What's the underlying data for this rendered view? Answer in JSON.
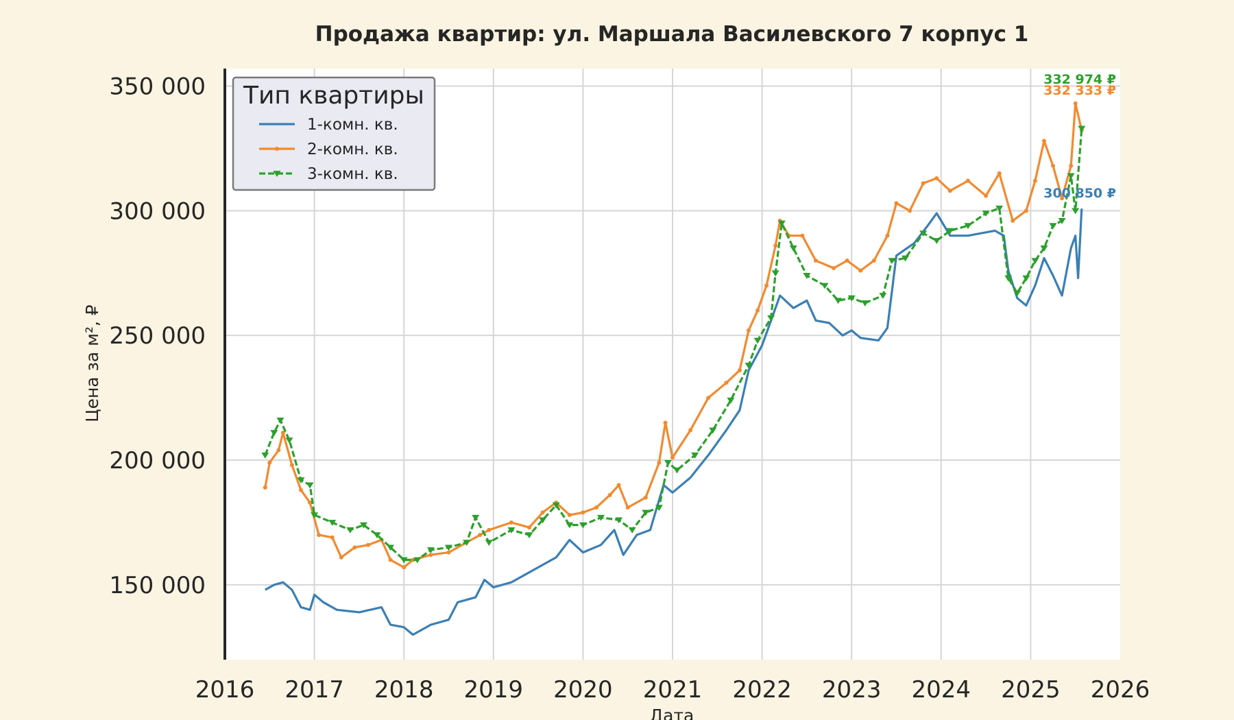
{
  "chart_data": {
    "type": "line",
    "title": "Продажа квартир: ул. Маршала Василевского 7 корпус 1",
    "xlabel": "Дата",
    "ylabel": "Цена за м², ₽",
    "xlim": [
      2016,
      2026
    ],
    "ylim": [
      120000,
      357000
    ],
    "x_ticks": [
      "2016",
      "2017",
      "2018",
      "2019",
      "2020",
      "2021",
      "2022",
      "2023",
      "2024",
      "2025",
      "2026"
    ],
    "y_ticks": [
      "150 000",
      "200 000",
      "250 000",
      "300 000",
      "350 000"
    ],
    "y_tick_values": [
      150000,
      200000,
      250000,
      300000,
      350000
    ],
    "grid": true,
    "legend": {
      "title": "Тип квартиры",
      "placement": "top-left"
    },
    "series": [
      {
        "name": "1-комн. кв.",
        "color": "#3a7fb5",
        "marker": "none",
        "end_label": "300 850 ₽",
        "points": [
          [
            2016.45,
            148000
          ],
          [
            2016.55,
            150000
          ],
          [
            2016.65,
            151000
          ],
          [
            2016.75,
            148000
          ],
          [
            2016.85,
            141000
          ],
          [
            2016.95,
            140000
          ],
          [
            2017.0,
            146000
          ],
          [
            2017.1,
            143000
          ],
          [
            2017.25,
            140000
          ],
          [
            2017.5,
            139000
          ],
          [
            2017.75,
            141000
          ],
          [
            2017.85,
            134000
          ],
          [
            2018.0,
            133000
          ],
          [
            2018.1,
            130000
          ],
          [
            2018.3,
            134000
          ],
          [
            2018.5,
            136000
          ],
          [
            2018.6,
            143000
          ],
          [
            2018.8,
            145000
          ],
          [
            2018.9,
            152000
          ],
          [
            2019.0,
            149000
          ],
          [
            2019.2,
            151000
          ],
          [
            2019.5,
            157000
          ],
          [
            2019.7,
            161000
          ],
          [
            2019.85,
            168000
          ],
          [
            2020.0,
            163000
          ],
          [
            2020.2,
            166000
          ],
          [
            2020.35,
            172000
          ],
          [
            2020.45,
            162000
          ],
          [
            2020.6,
            170000
          ],
          [
            2020.75,
            172000
          ],
          [
            2020.9,
            190000
          ],
          [
            2021.0,
            187000
          ],
          [
            2021.2,
            193000
          ],
          [
            2021.4,
            202000
          ],
          [
            2021.6,
            212000
          ],
          [
            2021.75,
            220000
          ],
          [
            2021.85,
            236000
          ],
          [
            2022.0,
            246000
          ],
          [
            2022.1,
            256000
          ],
          [
            2022.2,
            266000
          ],
          [
            2022.35,
            261000
          ],
          [
            2022.5,
            264000
          ],
          [
            2022.6,
            256000
          ],
          [
            2022.75,
            255000
          ],
          [
            2022.9,
            250000
          ],
          [
            2023.0,
            252000
          ],
          [
            2023.1,
            249000
          ],
          [
            2023.3,
            248000
          ],
          [
            2023.4,
            253000
          ],
          [
            2023.5,
            282000
          ],
          [
            2023.7,
            287000
          ],
          [
            2023.85,
            294000
          ],
          [
            2023.95,
            299000
          ],
          [
            2024.1,
            290000
          ],
          [
            2024.3,
            290000
          ],
          [
            2024.45,
            291000
          ],
          [
            2024.6,
            292000
          ],
          [
            2024.7,
            290000
          ],
          [
            2024.75,
            276000
          ],
          [
            2024.85,
            265000
          ],
          [
            2024.95,
            262000
          ],
          [
            2025.05,
            270000
          ],
          [
            2025.15,
            281000
          ],
          [
            2025.25,
            274000
          ],
          [
            2025.35,
            266000
          ],
          [
            2025.45,
            285000
          ],
          [
            2025.5,
            290000
          ],
          [
            2025.53,
            273000
          ],
          [
            2025.57,
            300850
          ]
        ]
      },
      {
        "name": "2-комн. кв.",
        "color": "#f28a2e",
        "marker": "circle",
        "end_label": "332 333 ₽",
        "points": [
          [
            2016.45,
            189000
          ],
          [
            2016.5,
            199000
          ],
          [
            2016.6,
            204000
          ],
          [
            2016.65,
            211000
          ],
          [
            2016.75,
            198000
          ],
          [
            2016.85,
            188000
          ],
          [
            2016.95,
            183000
          ],
          [
            2017.05,
            170000
          ],
          [
            2017.2,
            169000
          ],
          [
            2017.3,
            161000
          ],
          [
            2017.45,
            165000
          ],
          [
            2017.6,
            166000
          ],
          [
            2017.75,
            168000
          ],
          [
            2017.85,
            160000
          ],
          [
            2018.0,
            157000
          ],
          [
            2018.1,
            160000
          ],
          [
            2018.3,
            162000
          ],
          [
            2018.5,
            163000
          ],
          [
            2018.7,
            167000
          ],
          [
            2018.85,
            170000
          ],
          [
            2018.95,
            172000
          ],
          [
            2019.2,
            175000
          ],
          [
            2019.4,
            173000
          ],
          [
            2019.55,
            179000
          ],
          [
            2019.7,
            183000
          ],
          [
            2019.85,
            178000
          ],
          [
            2020.0,
            179000
          ],
          [
            2020.15,
            181000
          ],
          [
            2020.3,
            186000
          ],
          [
            2020.4,
            190000
          ],
          [
            2020.5,
            181000
          ],
          [
            2020.7,
            185000
          ],
          [
            2020.85,
            199000
          ],
          [
            2020.92,
            215000
          ],
          [
            2021.0,
            201000
          ],
          [
            2021.2,
            212000
          ],
          [
            2021.4,
            225000
          ],
          [
            2021.6,
            231000
          ],
          [
            2021.75,
            236000
          ],
          [
            2021.85,
            252000
          ],
          [
            2021.95,
            260000
          ],
          [
            2022.05,
            270000
          ],
          [
            2022.15,
            286000
          ],
          [
            2022.2,
            296000
          ],
          [
            2022.3,
            290000
          ],
          [
            2022.45,
            290000
          ],
          [
            2022.6,
            280000
          ],
          [
            2022.8,
            277000
          ],
          [
            2022.95,
            280000
          ],
          [
            2023.1,
            276000
          ],
          [
            2023.25,
            280000
          ],
          [
            2023.4,
            290000
          ],
          [
            2023.5,
            303000
          ],
          [
            2023.65,
            300000
          ],
          [
            2023.8,
            311000
          ],
          [
            2023.95,
            313000
          ],
          [
            2024.1,
            308000
          ],
          [
            2024.3,
            312000
          ],
          [
            2024.5,
            306000
          ],
          [
            2024.65,
            315000
          ],
          [
            2024.8,
            296000
          ],
          [
            2024.95,
            300000
          ],
          [
            2025.05,
            312000
          ],
          [
            2025.15,
            328000
          ],
          [
            2025.25,
            318000
          ],
          [
            2025.35,
            305000
          ],
          [
            2025.45,
            318000
          ],
          [
            2025.5,
            343000
          ],
          [
            2025.57,
            332333
          ]
        ]
      },
      {
        "name": "3-комн. кв.",
        "color": "#2ca02c",
        "marker": "triangle-down",
        "end_label": "332 974 ₽",
        "points": [
          [
            2016.45,
            202000
          ],
          [
            2016.55,
            211000
          ],
          [
            2016.62,
            216000
          ],
          [
            2016.72,
            208000
          ],
          [
            2016.85,
            192000
          ],
          [
            2016.95,
            190000
          ],
          [
            2017.0,
            178000
          ],
          [
            2017.2,
            175000
          ],
          [
            2017.4,
            172000
          ],
          [
            2017.55,
            174000
          ],
          [
            2017.7,
            170000
          ],
          [
            2017.85,
            165000
          ],
          [
            2018.0,
            160000
          ],
          [
            2018.15,
            160000
          ],
          [
            2018.3,
            164000
          ],
          [
            2018.5,
            165000
          ],
          [
            2018.7,
            167000
          ],
          [
            2018.8,
            177000
          ],
          [
            2018.95,
            167000
          ],
          [
            2019.2,
            172000
          ],
          [
            2019.4,
            170000
          ],
          [
            2019.55,
            176000
          ],
          [
            2019.7,
            182000
          ],
          [
            2019.85,
            174000
          ],
          [
            2020.0,
            174000
          ],
          [
            2020.2,
            177000
          ],
          [
            2020.4,
            176000
          ],
          [
            2020.55,
            172000
          ],
          [
            2020.7,
            179000
          ],
          [
            2020.85,
            181000
          ],
          [
            2020.95,
            199000
          ],
          [
            2021.05,
            196000
          ],
          [
            2021.25,
            202000
          ],
          [
            2021.45,
            212000
          ],
          [
            2021.65,
            224000
          ],
          [
            2021.85,
            238000
          ],
          [
            2021.95,
            248000
          ],
          [
            2022.1,
            257000
          ],
          [
            2022.15,
            275000
          ],
          [
            2022.22,
            295000
          ],
          [
            2022.35,
            285000
          ],
          [
            2022.5,
            274000
          ],
          [
            2022.7,
            270000
          ],
          [
            2022.85,
            264000
          ],
          [
            2023.0,
            265000
          ],
          [
            2023.15,
            263000
          ],
          [
            2023.35,
            266000
          ],
          [
            2023.45,
            280000
          ],
          [
            2023.6,
            281000
          ],
          [
            2023.8,
            291000
          ],
          [
            2023.95,
            288000
          ],
          [
            2024.1,
            292000
          ],
          [
            2024.3,
            294000
          ],
          [
            2024.5,
            299000
          ],
          [
            2024.65,
            301000
          ],
          [
            2024.75,
            273000
          ],
          [
            2024.85,
            267000
          ],
          [
            2024.95,
            273000
          ],
          [
            2025.05,
            280000
          ],
          [
            2025.15,
            285000
          ],
          [
            2025.25,
            294000
          ],
          [
            2025.35,
            296000
          ],
          [
            2025.45,
            314000
          ],
          [
            2025.5,
            300000
          ],
          [
            2025.57,
            332974
          ]
        ]
      }
    ]
  }
}
